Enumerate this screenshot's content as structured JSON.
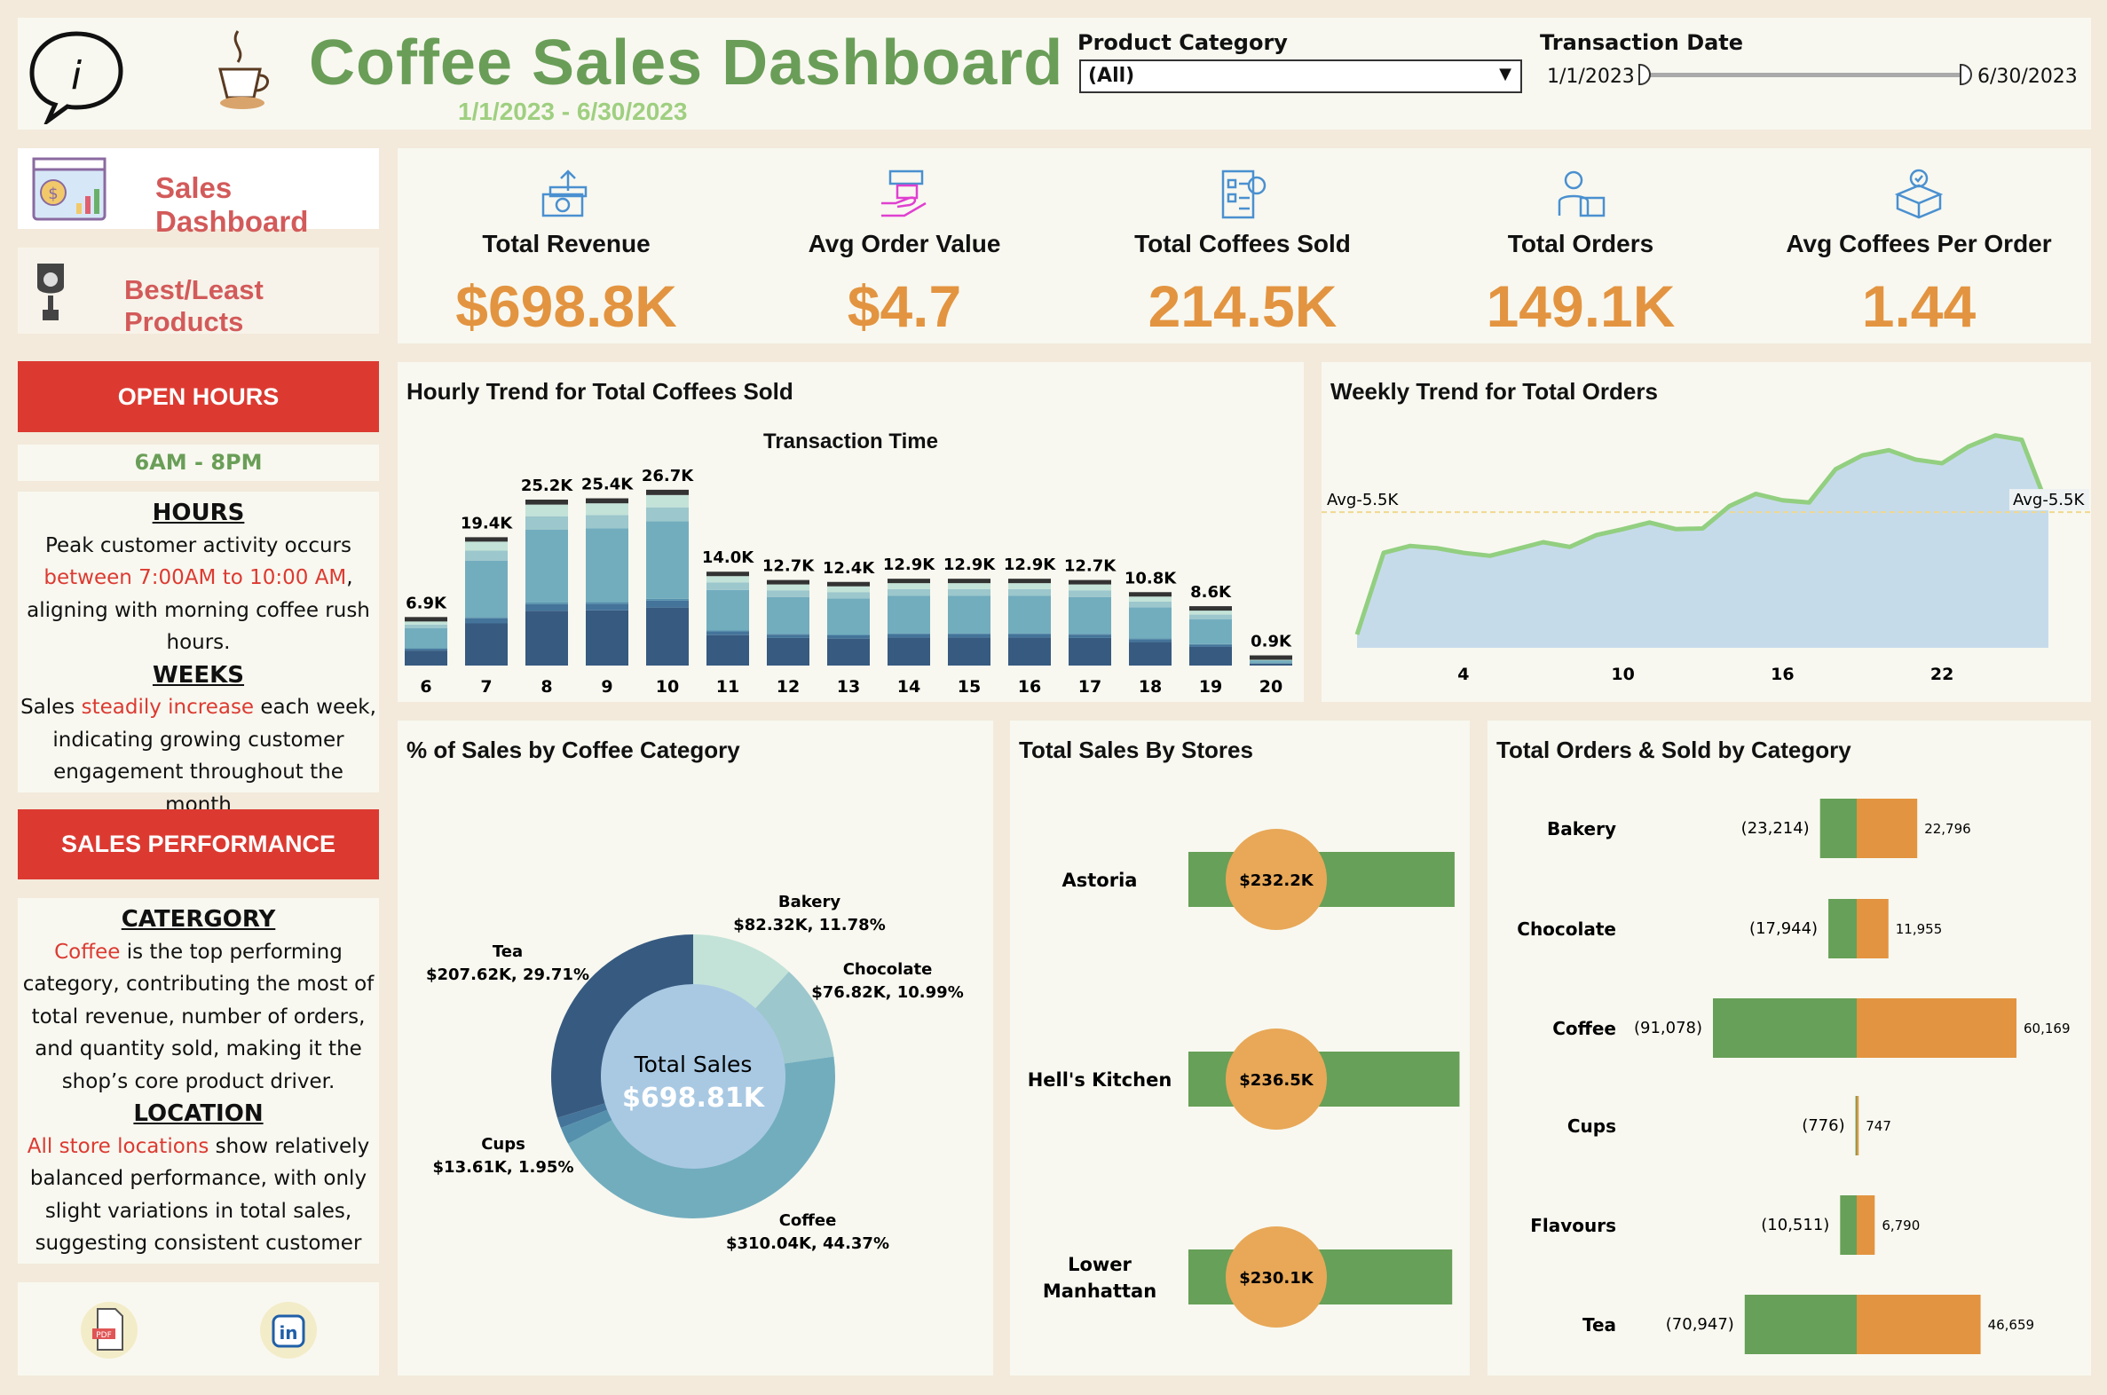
{
  "header": {
    "title": "Coffee Sales Dashboard",
    "date_range": "1/1/2023 - 6/30/2023",
    "product_category_label": "Product Category",
    "product_category_value": "(All)",
    "transaction_date_label": "Transaction Date",
    "date_start": "1/1/2023",
    "date_end": "6/30/2023"
  },
  "nav": {
    "sales_dashboard": "Sales Dashboard",
    "best_least": "Best/Least Products"
  },
  "sidebar": {
    "open_hours_title": "OPEN HOURS",
    "open_hours_value": "6AM - 8PM",
    "hours_heading": "HOURS",
    "hours_t1": "Peak customer activity occurs",
    "hours_hl": "between 7:00AM to 10:00 AM",
    "hours_t2": ", aligning with morning coffee rush hours.",
    "weeks_heading": "WEEKS",
    "weeks_t1": "Sales ",
    "weeks_hl": "steadily increase",
    "weeks_t2": " each week, indicating growing customer engagement throughout the month",
    "sales_perf_title": "SALES PERFORMANCE",
    "cat_heading": "CATERGORY",
    "cat_hl": "Coffee",
    "cat_t": " is the top performing category, contributing the most of total revenue, number of orders, and quantity sold, making it the shop’s core product driver.",
    "loc_heading": "LOCATION",
    "loc_hl": "All store locations",
    "loc_t": " show relatively balanced performance, with only slight variations in total sales, suggesting consistent customer"
  },
  "kpis": [
    {
      "label": "Total Revenue",
      "value": "$698.8K",
      "icon": "money-up-icon"
    },
    {
      "label": "Avg Order Value",
      "value": "$4.7",
      "icon": "hand-money-icon"
    },
    {
      "label": "Total Coffees Sold",
      "value": "214.5K",
      "icon": "checklist-icon"
    },
    {
      "label": "Total Orders",
      "value": "149.1K",
      "icon": "delivery-person-icon"
    },
    {
      "label": "Avg Coffees Per Order",
      "value": "1.44",
      "icon": "package-check-icon"
    }
  ],
  "colors": {
    "bg": "#f3eadb",
    "panel": "#f8f8f0",
    "accent_red": "#dc3a31",
    "title_green": "#6a9e58",
    "kpi_orange": "#e39440",
    "bar_green": "#67a058",
    "bar_orange": "#e39440"
  },
  "chart_data": [
    {
      "type": "bar",
      "title": "Hourly Trend for Total Coffees Sold",
      "xlabel": "Transaction Time",
      "categories": [
        "6",
        "7",
        "8",
        "9",
        "10",
        "11",
        "12",
        "13",
        "14",
        "15",
        "16",
        "17",
        "18",
        "19",
        "20"
      ],
      "values": [
        6.9,
        19.4,
        25.2,
        25.4,
        26.7,
        14.0,
        12.7,
        12.4,
        12.9,
        12.9,
        12.9,
        12.7,
        10.8,
        8.6,
        0.9
      ],
      "labels": [
        "6.9K",
        "19.4K",
        "25.2K",
        "25.4K",
        "26.7K",
        "14.0K",
        "12.7K",
        "12.4K",
        "12.9K",
        "12.9K",
        "12.9K",
        "12.7K",
        "10.8K",
        "8.6K",
        "0.9K"
      ],
      "stacked": true
    },
    {
      "type": "area",
      "title": "Weekly Trend for Total Orders",
      "x": [
        0,
        1,
        2,
        3,
        4,
        5,
        6,
        7,
        8,
        9,
        10,
        11,
        12,
        13,
        14,
        15,
        16,
        17,
        18,
        19,
        20,
        21,
        22,
        23,
        24,
        25,
        26
      ],
      "values": [
        0.54,
        3.85,
        4.13,
        4.04,
        3.85,
        3.73,
        4.0,
        4.28,
        4.09,
        4.57,
        4.81,
        5.08,
        4.81,
        4.84,
        5.74,
        6.24,
        5.98,
        5.89,
        7.24,
        7.8,
        8.01,
        7.63,
        7.48,
        8.16,
        8.61,
        8.43,
        5.65
      ],
      "xticks": [
        "4",
        "10",
        "16",
        "22"
      ],
      "xtick_values": [
        4,
        10,
        16,
        22
      ],
      "reference_line": {
        "value": 5.5,
        "label": "Avg-5.5K"
      }
    },
    {
      "type": "pie",
      "title": "% of Sales by Coffee Category",
      "center_label": "Total Sales",
      "center_value": "$698.81K",
      "slices": [
        {
          "name": "Bakery",
          "pct": 11.78,
          "text": "$82.32K, 11.78%",
          "color": "#c3e3d8"
        },
        {
          "name": "Chocolate",
          "pct": 10.99,
          "text": "$76.82K, 10.99%",
          "color": "#9cc7cc"
        },
        {
          "name": "Coffee",
          "pct": 44.37,
          "text": "$310.04K, 44.37%",
          "color": "#72adbe"
        },
        {
          "name": "Cups",
          "pct": 1.95,
          "text": "$13.61K, 1.95%",
          "color": "#5591ad"
        },
        {
          "name": "",
          "pct": 1.2,
          "text": "",
          "color": "#44749a"
        },
        {
          "name": "Tea",
          "pct": 29.71,
          "text": "$207.62K, 29.71%",
          "color": "#375a80"
        }
      ]
    },
    {
      "type": "bar",
      "title": "Total Sales By Stores",
      "categories": [
        "Astoria",
        "Hell's Kitchen",
        "Lower Manhattan"
      ],
      "values": [
        232.2,
        236.5,
        230.1
      ],
      "labels": [
        "$232.2K",
        "$236.5K",
        "$230.1K"
      ]
    },
    {
      "type": "bar",
      "title": "Total Orders & Sold by Category",
      "categories": [
        "Bakery",
        "Chocolate",
        "Coffee",
        "Cups",
        "Flavours",
        "Tea"
      ],
      "series": [
        {
          "values": [
            23214,
            17944,
            91078,
            776,
            10511,
            70947
          ],
          "labels": [
            "(23,214)",
            "(17,944)",
            "(91,078)",
            "(776)",
            "(10,511)",
            "(70,947)"
          ],
          "color": "#67a058"
        },
        {
          "values": [
            22796,
            11955,
            60169,
            747,
            6790,
            46659
          ],
          "labels": [
            "22,796",
            "11,955",
            "60,169",
            "747",
            "6,790",
            "46,659"
          ],
          "color": "#e39440"
        }
      ]
    }
  ]
}
